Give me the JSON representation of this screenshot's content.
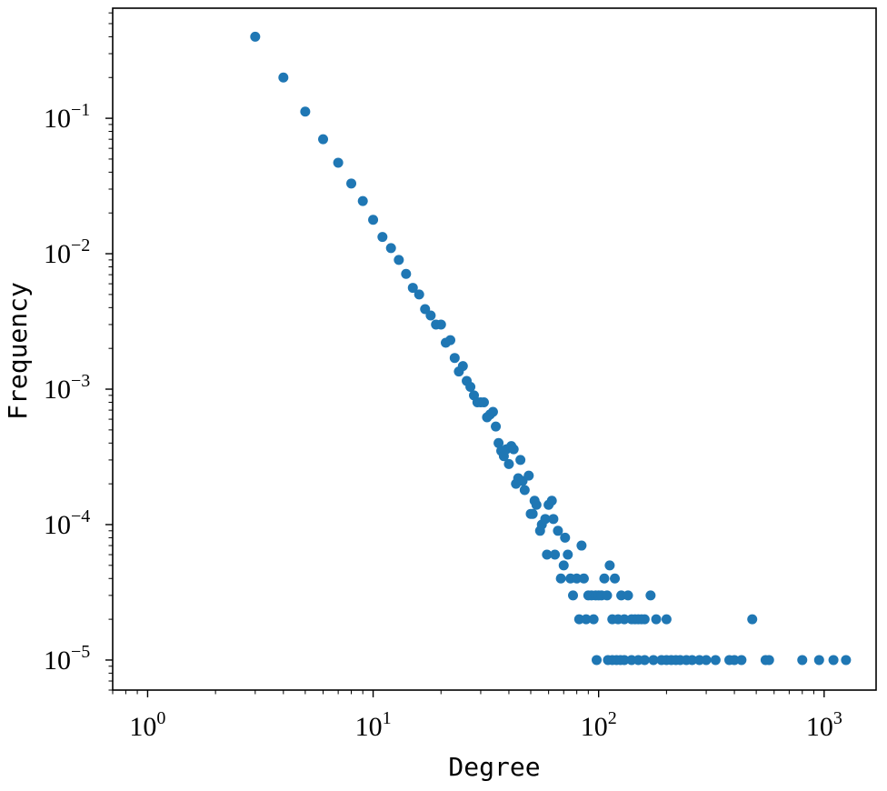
{
  "chart_data": {
    "type": "scatter",
    "title": "",
    "xlabel": "Degree",
    "ylabel": "Frequency",
    "x_scale": "log",
    "y_scale": "log",
    "xlim": [
      0.7,
      1700
    ],
    "ylim": [
      6e-06,
      0.65
    ],
    "grid": false,
    "marker_color": "#1f77b4",
    "x_ticks": [
      {
        "value": 1,
        "base": "10",
        "exp": "0"
      },
      {
        "value": 10,
        "base": "10",
        "exp": "1"
      },
      {
        "value": 100,
        "base": "10",
        "exp": "2"
      },
      {
        "value": 1000,
        "base": "10",
        "exp": "3"
      }
    ],
    "y_ticks": [
      {
        "value": 1e-05,
        "base": "10",
        "exp": "−5"
      },
      {
        "value": 0.0001,
        "base": "10",
        "exp": "−4"
      },
      {
        "value": 0.001,
        "base": "10",
        "exp": "−3"
      },
      {
        "value": 0.01,
        "base": "10",
        "exp": "−2"
      },
      {
        "value": 0.1,
        "base": "10",
        "exp": "−1"
      }
    ],
    "points": [
      [
        3,
        0.4
      ],
      [
        4,
        0.2
      ],
      [
        5,
        0.112
      ],
      [
        6,
        0.07
      ],
      [
        7,
        0.047
      ],
      [
        8,
        0.033
      ],
      [
        9,
        0.0245
      ],
      [
        10,
        0.0178
      ],
      [
        11,
        0.0133
      ],
      [
        12,
        0.011
      ],
      [
        13,
        0.009
      ],
      [
        14,
        0.0071
      ],
      [
        15,
        0.0056
      ],
      [
        16,
        0.005
      ],
      [
        17,
        0.0039
      ],
      [
        18,
        0.0035
      ],
      [
        19,
        0.003
      ],
      [
        20,
        0.003
      ],
      [
        21,
        0.0022
      ],
      [
        22,
        0.0023
      ],
      [
        23,
        0.0017
      ],
      [
        24,
        0.00135
      ],
      [
        25,
        0.00148
      ],
      [
        26,
        0.00115
      ],
      [
        27,
        0.00104
      ],
      [
        28,
        0.0009
      ],
      [
        29,
        0.0008
      ],
      [
        30,
        0.0008
      ],
      [
        31,
        0.0008
      ],
      [
        32,
        0.00062
      ],
      [
        33,
        0.00065
      ],
      [
        34,
        0.00068
      ],
      [
        35,
        0.00053
      ],
      [
        36,
        0.0004
      ],
      [
        37,
        0.00035
      ],
      [
        38,
        0.00032
      ],
      [
        39,
        0.00036
      ],
      [
        40,
        0.00028
      ],
      [
        41,
        0.00038
      ],
      [
        42,
        0.00036
      ],
      [
        43,
        0.0002
      ],
      [
        44,
        0.00022
      ],
      [
        45,
        0.0003
      ],
      [
        46,
        0.00021
      ],
      [
        47,
        0.00018
      ],
      [
        49,
        0.00023
      ],
      [
        50,
        0.00012
      ],
      [
        51,
        0.00012
      ],
      [
        52,
        0.00015
      ],
      [
        53,
        0.00014
      ],
      [
        55,
        9e-05
      ],
      [
        56,
        0.0001
      ],
      [
        58,
        0.00011
      ],
      [
        59,
        6e-05
      ],
      [
        60,
        0.00014
      ],
      [
        62,
        0.00015
      ],
      [
        63,
        0.00011
      ],
      [
        64,
        6e-05
      ],
      [
        66,
        9e-05
      ],
      [
        68,
        4e-05
      ],
      [
        70,
        5e-05
      ],
      [
        71,
        8e-05
      ],
      [
        73,
        6e-05
      ],
      [
        75,
        4e-05
      ],
      [
        77,
        3e-05
      ],
      [
        80,
        4e-05
      ],
      [
        82,
        2e-05
      ],
      [
        84,
        7e-05
      ],
      [
        86,
        4e-05
      ],
      [
        88,
        2e-05
      ],
      [
        90,
        3e-05
      ],
      [
        93,
        3e-05
      ],
      [
        95,
        2e-05
      ],
      [
        97,
        3e-05
      ],
      [
        100,
        3e-05
      ],
      [
        103,
        3e-05
      ],
      [
        106,
        4e-05
      ],
      [
        109,
        3e-05
      ],
      [
        112,
        5e-05
      ],
      [
        115,
        2e-05
      ],
      [
        118,
        4e-05
      ],
      [
        122,
        2e-05
      ],
      [
        126,
        3e-05
      ],
      [
        130,
        2e-05
      ],
      [
        135,
        3e-05
      ],
      [
        140,
        2e-05
      ],
      [
        145,
        2e-05
      ],
      [
        150,
        2e-05
      ],
      [
        155,
        2e-05
      ],
      [
        160,
        2e-05
      ],
      [
        170,
        3e-05
      ],
      [
        180,
        2e-05
      ],
      [
        200,
        2e-05
      ],
      [
        98,
        1e-05
      ],
      [
        110,
        1e-05
      ],
      [
        115,
        1e-05
      ],
      [
        120,
        1e-05
      ],
      [
        125,
        1e-05
      ],
      [
        130,
        1e-05
      ],
      [
        140,
        1e-05
      ],
      [
        150,
        1e-05
      ],
      [
        160,
        1e-05
      ],
      [
        175,
        1e-05
      ],
      [
        190,
        1e-05
      ],
      [
        200,
        1e-05
      ],
      [
        210,
        1e-05
      ],
      [
        220,
        1e-05
      ],
      [
        230,
        1e-05
      ],
      [
        245,
        1e-05
      ],
      [
        260,
        1e-05
      ],
      [
        280,
        1e-05
      ],
      [
        300,
        1e-05
      ],
      [
        330,
        1e-05
      ],
      [
        380,
        1e-05
      ],
      [
        400,
        1e-05
      ],
      [
        430,
        1e-05
      ],
      [
        480,
        2e-05
      ],
      [
        550,
        1e-05
      ],
      [
        570,
        1e-05
      ],
      [
        800,
        1e-05
      ],
      [
        950,
        1e-05
      ],
      [
        1100,
        1e-05
      ],
      [
        1250,
        1e-05
      ]
    ]
  }
}
